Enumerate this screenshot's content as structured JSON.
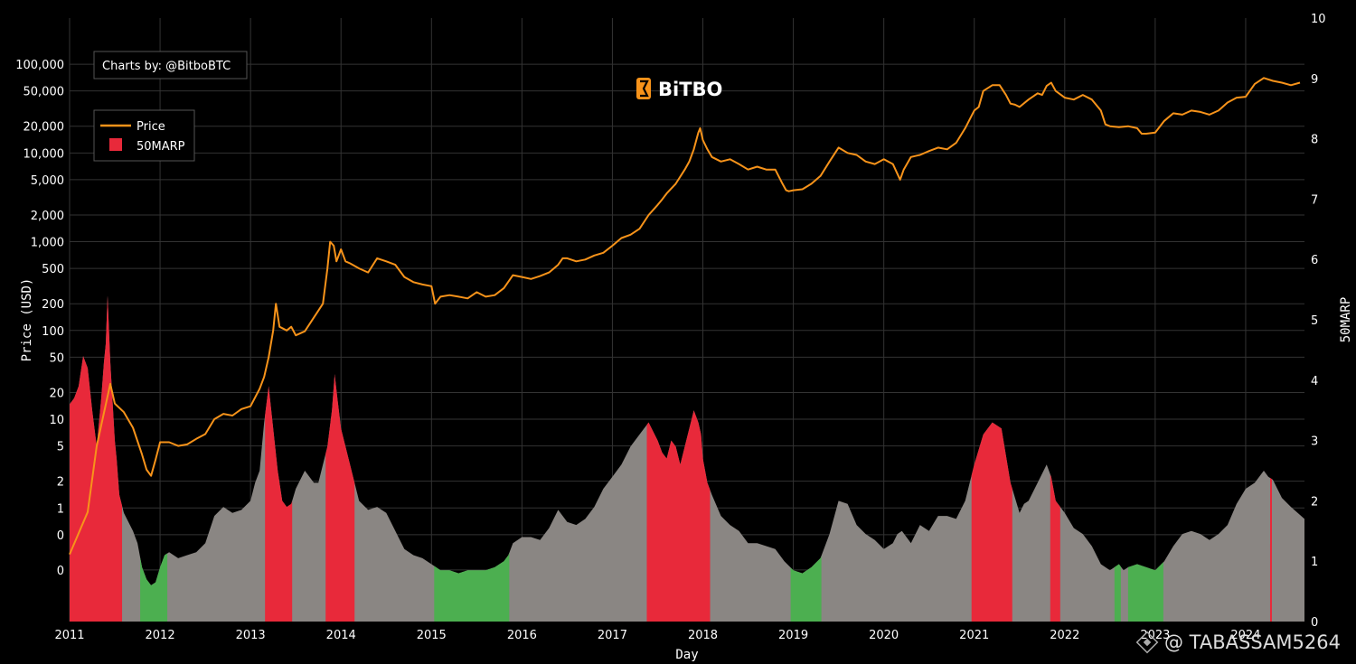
{
  "chart_data": {
    "type": "line",
    "credit": "Charts by: @BitboBTC",
    "logo_text": "BiTBO",
    "xlabel": "Day",
    "ylabel": "Price (USD)",
    "y2label": "50MARP",
    "x_ticks": [
      "2011",
      "2012",
      "2013",
      "2014",
      "2015",
      "2016",
      "2017",
      "2018",
      "2019",
      "2020",
      "2021",
      "2022",
      "2023",
      "2024"
    ],
    "x_range": [
      2011.0,
      2024.65
    ],
    "y_ticks": [
      "100,000",
      "50,000",
      "20,000",
      "10,000",
      "5,000",
      "2,000",
      "1,000",
      "500",
      "200",
      "100",
      "50",
      "20",
      "10",
      "5",
      "2",
      "1",
      "0",
      "0"
    ],
    "y2_ticks": [
      "0",
      "1",
      "2",
      "3",
      "4",
      "5",
      "6",
      "7",
      "8",
      "9",
      "10"
    ],
    "y2_range": [
      0,
      10
    ],
    "log_scale_left": true,
    "grid": true,
    "legend": {
      "position": "top-left",
      "items": [
        "Price",
        "50MARP"
      ]
    },
    "colors": {
      "price": "#f7931a",
      "high": "#e8293a",
      "neutral": "#8a8683",
      "low": "#4caf50"
    },
    "series": [
      {
        "name": "Price",
        "axis": "left",
        "x": [
          2011.0,
          2011.2,
          2011.3,
          2011.45,
          2011.5,
          2011.6,
          2011.7,
          2011.8,
          2011.85,
          2011.9,
          2011.95,
          2012.0,
          2012.1,
          2012.2,
          2012.3,
          2012.4,
          2012.5,
          2012.6,
          2012.7,
          2012.8,
          2012.9,
          2013.0,
          2013.1,
          2013.15,
          2013.2,
          2013.25,
          2013.28,
          2013.32,
          2013.4,
          2013.45,
          2013.5,
          2013.6,
          2013.7,
          2013.8,
          2013.85,
          2013.88,
          2013.92,
          2013.95,
          2014.0,
          2014.05,
          2014.1,
          2014.2,
          2014.3,
          2014.4,
          2014.5,
          2014.6,
          2014.7,
          2014.8,
          2014.9,
          2015.0,
          2015.04,
          2015.1,
          2015.2,
          2015.3,
          2015.4,
          2015.5,
          2015.6,
          2015.7,
          2015.8,
          2015.9,
          2016.0,
          2016.1,
          2016.2,
          2016.3,
          2016.4,
          2016.45,
          2016.5,
          2016.6,
          2016.7,
          2016.8,
          2016.9,
          2017.0,
          2017.1,
          2017.2,
          2017.3,
          2017.4,
          2017.5,
          2017.55,
          2017.6,
          2017.7,
          2017.8,
          2017.85,
          2017.9,
          2017.95,
          2017.97,
          2018.0,
          2018.05,
          2018.1,
          2018.2,
          2018.3,
          2018.4,
          2018.5,
          2018.6,
          2018.7,
          2018.8,
          2018.88,
          2018.92,
          2018.95,
          2019.0,
          2019.1,
          2019.2,
          2019.3,
          2019.4,
          2019.5,
          2019.6,
          2019.7,
          2019.8,
          2019.9,
          2020.0,
          2020.1,
          2020.18,
          2020.22,
          2020.3,
          2020.4,
          2020.5,
          2020.6,
          2020.7,
          2020.8,
          2020.9,
          2021.0,
          2021.05,
          2021.1,
          2021.2,
          2021.28,
          2021.35,
          2021.4,
          2021.45,
          2021.5,
          2021.6,
          2021.7,
          2021.75,
          2021.8,
          2021.85,
          2021.9,
          2022.0,
          2022.1,
          2022.2,
          2022.3,
          2022.4,
          2022.45,
          2022.5,
          2022.6,
          2022.7,
          2022.8,
          2022.85,
          2022.9,
          2023.0,
          2023.1,
          2023.2,
          2023.3,
          2023.4,
          2023.5,
          2023.6,
          2023.7,
          2023.8,
          2023.9,
          2024.0,
          2024.1,
          2024.2,
          2024.3,
          2024.4,
          2024.5,
          2024.6
        ],
        "values": [
          0.3,
          0.9,
          5,
          25,
          15,
          12,
          8,
          4,
          2.7,
          2.3,
          3.5,
          5.5,
          5.5,
          5,
          5.2,
          6,
          6.8,
          10,
          11.5,
          11,
          13,
          14,
          22,
          30,
          50,
          100,
          200,
          110,
          100,
          110,
          88,
          98,
          140,
          200,
          500,
          1000,
          900,
          600,
          820,
          600,
          570,
          500,
          450,
          650,
          600,
          550,
          400,
          350,
          330,
          315,
          200,
          240,
          250,
          240,
          230,
          270,
          240,
          250,
          300,
          420,
          400,
          380,
          410,
          450,
          550,
          650,
          650,
          600,
          630,
          700,
          750,
          900,
          1100,
          1200,
          1400,
          2000,
          2600,
          3000,
          3500,
          4500,
          6500,
          8000,
          11000,
          17000,
          19000,
          14000,
          11000,
          9000,
          8000,
          8500,
          7500,
          6500,
          7000,
          6500,
          6500,
          4500,
          3800,
          3700,
          3800,
          3900,
          4500,
          5500,
          8000,
          11500,
          10000,
          9500,
          8000,
          7500,
          8500,
          7500,
          5000,
          6500,
          9000,
          9500,
          10500,
          11500,
          11000,
          13000,
          19000,
          30000,
          33000,
          50000,
          58000,
          58000,
          45000,
          36000,
          35000,
          33000,
          40000,
          47000,
          45000,
          57000,
          62000,
          50000,
          42000,
          40000,
          45000,
          40000,
          30000,
          21000,
          20000,
          19500,
          20000,
          19000,
          16500,
          16500,
          17000,
          23000,
          28000,
          27000,
          30000,
          29000,
          27000,
          30000,
          37000,
          42000,
          43000,
          60000,
          70000,
          65000,
          62000,
          58000,
          62000
        ]
      },
      {
        "name": "50MARP",
        "axis": "right",
        "x": [
          2011.0,
          2011.05,
          2011.1,
          2011.15,
          2011.2,
          2011.25,
          2011.3,
          2011.35,
          2011.38,
          2011.4,
          2011.42,
          2011.45,
          2011.5,
          2011.52,
          2011.55,
          2011.6,
          2011.7,
          2011.75,
          2011.8,
          2011.85,
          2011.9,
          2011.95,
          2012.0,
          2012.05,
          2012.1,
          2012.2,
          2012.3,
          2012.4,
          2012.5,
          2012.6,
          2012.7,
          2012.8,
          2012.9,
          2013.0,
          2013.05,
          2013.1,
          2013.15,
          2013.2,
          2013.25,
          2013.3,
          2013.35,
          2013.4,
          2013.45,
          2013.5,
          2013.6,
          2013.7,
          2013.75,
          2013.8,
          2013.85,
          2013.9,
          2013.93,
          2013.96,
          2014.0,
          2014.05,
          2014.1,
          2014.15,
          2014.2,
          2014.3,
          2014.4,
          2014.5,
          2014.6,
          2014.7,
          2014.8,
          2014.9,
          2015.0,
          2015.1,
          2015.2,
          2015.3,
          2015.4,
          2015.5,
          2015.6,
          2015.7,
          2015.8,
          2015.85,
          2015.9,
          2016.0,
          2016.1,
          2016.2,
          2016.3,
          2016.4,
          2016.5,
          2016.6,
          2016.7,
          2016.8,
          2016.9,
          2017.0,
          2017.1,
          2017.2,
          2017.3,
          2017.35,
          2017.4,
          2017.5,
          2017.55,
          2017.6,
          2017.65,
          2017.7,
          2017.75,
          2017.8,
          2017.85,
          2017.9,
          2017.95,
          2017.98,
          2018.0,
          2018.05,
          2018.1,
          2018.2,
          2018.3,
          2018.4,
          2018.5,
          2018.6,
          2018.7,
          2018.8,
          2018.9,
          2019.0,
          2019.1,
          2019.2,
          2019.3,
          2019.4,
          2019.5,
          2019.6,
          2019.7,
          2019.8,
          2019.9,
          2020.0,
          2020.1,
          2020.15,
          2020.2,
          2020.3,
          2020.4,
          2020.5,
          2020.6,
          2020.7,
          2020.8,
          2020.9,
          2021.0,
          2021.1,
          2021.2,
          2021.3,
          2021.4,
          2021.5,
          2021.55,
          2021.6,
          2021.7,
          2021.8,
          2021.85,
          2021.9,
          2022.0,
          2022.1,
          2022.2,
          2022.3,
          2022.4,
          2022.5,
          2022.55,
          2022.6,
          2022.65,
          2022.7,
          2022.8,
          2022.9,
          2023.0,
          2023.1,
          2023.2,
          2023.3,
          2023.4,
          2023.5,
          2023.6,
          2023.7,
          2023.8,
          2023.9,
          2024.0,
          2024.1,
          2024.2,
          2024.25,
          2024.3,
          2024.4,
          2024.5,
          2024.65
        ],
        "values": [
          3.6,
          3.7,
          3.9,
          4.4,
          4.2,
          3.5,
          2.9,
          3.7,
          4.3,
          4.6,
          5.4,
          4.3,
          3.0,
          2.7,
          2.1,
          1.8,
          1.5,
          1.3,
          0.9,
          0.7,
          0.6,
          0.65,
          0.9,
          1.1,
          1.15,
          1.05,
          1.1,
          1.15,
          1.3,
          1.75,
          1.9,
          1.8,
          1.85,
          2.0,
          2.3,
          2.5,
          3.3,
          3.9,
          3.2,
          2.5,
          2.0,
          1.9,
          1.95,
          2.2,
          2.5,
          2.3,
          2.3,
          2.6,
          2.9,
          3.5,
          4.1,
          3.7,
          3.2,
          2.9,
          2.6,
          2.3,
          2.0,
          1.85,
          1.9,
          1.8,
          1.5,
          1.2,
          1.1,
          1.05,
          0.95,
          0.85,
          0.85,
          0.8,
          0.85,
          0.85,
          0.85,
          0.9,
          1.0,
          1.1,
          1.3,
          1.4,
          1.4,
          1.35,
          1.55,
          1.85,
          1.65,
          1.6,
          1.7,
          1.9,
          2.2,
          2.4,
          2.6,
          2.9,
          3.1,
          3.2,
          3.3,
          3.0,
          2.8,
          2.7,
          3.0,
          2.9,
          2.6,
          2.9,
          3.2,
          3.5,
          3.3,
          3.1,
          2.7,
          2.3,
          2.1,
          1.75,
          1.6,
          1.5,
          1.3,
          1.3,
          1.25,
          1.2,
          1.0,
          0.85,
          0.8,
          0.9,
          1.05,
          1.45,
          2.0,
          1.95,
          1.6,
          1.45,
          1.35,
          1.2,
          1.3,
          1.45,
          1.5,
          1.3,
          1.6,
          1.5,
          1.75,
          1.75,
          1.7,
          2.0,
          2.6,
          3.1,
          3.3,
          3.2,
          2.3,
          1.8,
          1.95,
          2.0,
          2.3,
          2.6,
          2.4,
          2.0,
          1.8,
          1.55,
          1.45,
          1.25,
          0.95,
          0.85,
          0.9,
          0.95,
          0.85,
          0.9,
          0.95,
          0.9,
          0.85,
          1.0,
          1.25,
          1.45,
          1.5,
          1.45,
          1.35,
          1.45,
          1.6,
          1.95,
          2.2,
          2.3,
          2.5,
          2.4,
          2.35,
          2.05,
          1.9,
          1.7
        ]
      }
    ],
    "marp_zones": {
      "high": [
        [
          2011.0,
          2011.58
        ],
        [
          2013.16,
          2013.46
        ],
        [
          2013.83,
          2014.15
        ],
        [
          2017.38,
          2018.08
        ],
        [
          2020.97,
          2021.42
        ],
        [
          2021.84,
          2021.95
        ],
        [
          2024.27,
          2024.29
        ]
      ],
      "low": [
        [
          2011.78,
          2012.08
        ],
        [
          2015.03,
          2015.86
        ],
        [
          2018.97,
          2019.31
        ],
        [
          2022.55,
          2022.62
        ],
        [
          2022.7,
          2023.09
        ]
      ]
    }
  }
}
